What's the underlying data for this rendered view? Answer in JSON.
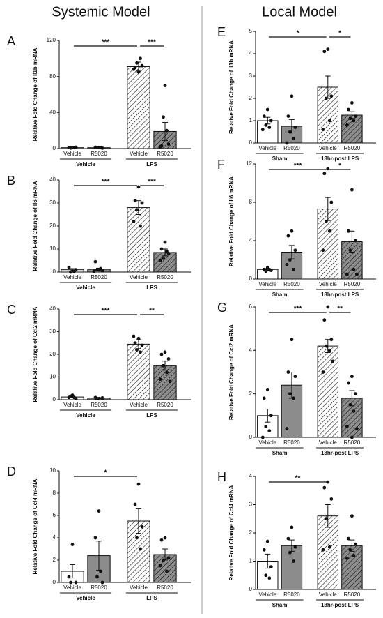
{
  "headers": [
    "Systemic Model",
    "Local Model"
  ],
  "bar_colors": [
    "#ffffff",
    "#8c8c8c",
    "#ffffff",
    "#8c8c8c"
  ],
  "hatched": [
    false,
    false,
    true,
    true
  ],
  "chart_data": [
    {
      "type": "bar",
      "panel": "A",
      "ylabel": "Relative Fold Change of Il1b mRNA",
      "categories": [
        "Vehicle",
        "R5020",
        "Vehicle",
        "R5020"
      ],
      "groups": [
        "Vehicle",
        "LPS"
      ],
      "values": [
        1,
        1,
        91,
        19
      ],
      "errors": [
        0.3,
        0.3,
        5,
        10
      ],
      "points": [
        [
          1,
          1,
          1.5,
          0.5,
          1
        ],
        [
          1,
          1.5,
          0.5,
          1,
          1
        ],
        [
          85,
          90,
          92,
          95,
          100,
          88
        ],
        [
          70,
          3,
          5,
          35,
          20,
          2
        ]
      ],
      "ylim": [
        0,
        120
      ],
      "yticks": [
        0,
        40,
        80,
        120
      ],
      "brackets": [
        {
          "between": [
            0,
            2
          ],
          "label": "***"
        },
        {
          "between": [
            2,
            3
          ],
          "label": "***"
        }
      ]
    },
    {
      "type": "bar",
      "panel": "B",
      "ylabel": "Relative Fold Change of Il6 mRNA",
      "categories": [
        "Vehicle",
        "R5020",
        "Vehicle",
        "R5020"
      ],
      "groups": [
        "Vehicle",
        "LPS"
      ],
      "values": [
        1,
        1.2,
        28,
        8.5
      ],
      "errors": [
        0.5,
        0.5,
        3,
        1.5
      ],
      "points": [
        [
          0.5,
          2,
          1,
          0,
          0.3
        ],
        [
          1,
          4.5,
          0.5,
          1,
          1.5,
          0.3
        ],
        [
          37,
          31,
          30,
          27,
          20,
          22
        ],
        [
          13,
          10,
          8,
          6,
          9,
          5
        ]
      ],
      "ylim": [
        0,
        40
      ],
      "yticks": [
        0,
        10,
        20,
        30,
        40
      ],
      "brackets": [
        {
          "between": [
            0,
            2
          ],
          "label": "***"
        },
        {
          "between": [
            2,
            3
          ],
          "label": "***"
        }
      ]
    },
    {
      "type": "bar",
      "panel": "C",
      "ylabel": "Relative Fold Change of Ccl2 mRNA",
      "categories": [
        "Vehicle",
        "R5020",
        "Vehicle",
        "R5020"
      ],
      "groups": [
        "Vehicle",
        "LPS"
      ],
      "values": [
        1.2,
        0.7,
        24.5,
        15
      ],
      "errors": [
        0.4,
        0.2,
        2,
        2
      ],
      "points": [
        [
          2,
          1,
          0.5,
          1.5,
          1
        ],
        [
          0.5,
          1,
          0.8,
          0.5
        ],
        [
          27,
          25,
          24,
          22,
          21,
          28
        ],
        [
          21,
          20,
          18,
          15,
          12,
          9,
          8
        ]
      ],
      "ylim": [
        0,
        40
      ],
      "yticks": [
        0,
        10,
        20,
        30,
        40
      ],
      "brackets": [
        {
          "between": [
            0,
            2
          ],
          "label": "***"
        },
        {
          "between": [
            2,
            3
          ],
          "label": "**"
        }
      ]
    },
    {
      "type": "bar",
      "panel": "D",
      "ylabel": "Relative Fold Change of Ccl4 mRNA",
      "categories": [
        "Vehicle",
        "R5020",
        "Vehicle",
        "R5020"
      ],
      "groups": [
        "Vehicle",
        "LPS"
      ],
      "values": [
        1,
        2.4,
        5.5,
        2.5
      ],
      "errors": [
        0.6,
        1.3,
        1.1,
        0.5
      ],
      "points": [
        [
          3.4,
          0.5,
          0,
          0
        ],
        [
          6.4,
          4,
          0,
          0.5,
          1
        ],
        [
          8.8,
          7,
          5,
          4,
          3
        ],
        [
          4,
          3.8,
          2.2,
          2,
          1,
          1.5
        ]
      ],
      "ylim": [
        0,
        10
      ],
      "yticks": [
        0,
        2,
        4,
        6,
        8,
        10
      ],
      "brackets": [
        {
          "between": [
            0,
            2
          ],
          "label": "*"
        }
      ]
    },
    {
      "type": "bar",
      "panel": "E",
      "ylabel": "Relative Fold Change of Il1b mRNA",
      "categories": [
        "Vehicle",
        "R5020",
        "Vehicle",
        "R5020"
      ],
      "groups": [
        "Sham",
        "18hr-post LPS"
      ],
      "values": [
        1,
        0.75,
        2.5,
        1.25
      ],
      "errors": [
        0.15,
        0.3,
        0.5,
        0.15
      ],
      "points": [
        [
          1.5,
          1.2,
          1,
          0.8,
          0.7,
          0.6
        ],
        [
          2.1,
          1.2,
          0.7,
          0.5,
          0.2,
          0
        ],
        [
          4.2,
          4.1,
          2.1,
          2,
          1,
          0.6
        ],
        [
          1.8,
          1.5,
          1.2,
          1.1,
          1,
          0.8
        ]
      ],
      "ylim": [
        0,
        5
      ],
      "yticks": [
        0,
        1,
        2,
        3,
        4,
        5
      ],
      "brackets": [
        {
          "between": [
            0,
            2
          ],
          "label": "*"
        },
        {
          "between": [
            2,
            3
          ],
          "label": "*"
        }
      ]
    },
    {
      "type": "bar",
      "panel": "F",
      "ylabel": "Relative Fold Change of Il6 mRNA",
      "categories": [
        "Vehicle",
        "R5020",
        "Vehicle",
        "R5020"
      ],
      "groups": [
        "Sham",
        "18hr-post LPS"
      ],
      "values": [
        1,
        2.8,
        7.3,
        3.9
      ],
      "errors": [
        0.1,
        0.7,
        1.2,
        1.1
      ],
      "points": [
        [
          1.2,
          1,
          0.9,
          0.8,
          1
        ],
        [
          5,
          4.5,
          3,
          2,
          1,
          1.5
        ],
        [
          11.5,
          11,
          8,
          6,
          5,
          3
        ],
        [
          9.3,
          5,
          4,
          3,
          1,
          0.5,
          0.5
        ]
      ],
      "ylim": [
        0,
        12
      ],
      "yticks": [
        0,
        4,
        8,
        12
      ],
      "brackets": [
        {
          "between": [
            0,
            2
          ],
          "label": "***"
        },
        {
          "between": [
            2,
            3
          ],
          "label": "*"
        }
      ]
    },
    {
      "type": "bar",
      "panel": "G",
      "ylabel": "Relative Fold Change of Ccl2 mRNA",
      "categories": [
        "Vehicle",
        "R5020",
        "Vehicle",
        "R5020"
      ],
      "groups": [
        "Sham",
        "18hr-post LPS"
      ],
      "values": [
        1,
        2.4,
        4.2,
        1.8
      ],
      "errors": [
        0.3,
        0.6,
        0.3,
        0.35
      ],
      "points": [
        [
          2.2,
          1.8,
          1,
          0.5,
          0.3,
          0
        ],
        [
          4.5,
          3,
          2.8,
          2,
          1.8,
          0.4
        ],
        [
          6,
          5.4,
          4.5,
          4.2,
          4,
          3,
          3.5
        ],
        [
          2.8,
          2.5,
          2,
          1.5,
          1.2,
          0.5,
          0.4,
          0
        ]
      ],
      "ylim": [
        0,
        6
      ],
      "yticks": [
        0,
        2,
        4,
        6
      ],
      "brackets": [
        {
          "between": [
            0,
            2
          ],
          "label": "***"
        },
        {
          "between": [
            2,
            3
          ],
          "label": "**"
        }
      ]
    },
    {
      "type": "bar",
      "panel": "H",
      "ylabel": "Relative Fold Change of Ccl4 mRNA",
      "categories": [
        "Vehicle",
        "R5020",
        "Vehicle",
        "R5020"
      ],
      "groups": [
        "Sham",
        "18hr-post LPS"
      ],
      "values": [
        1,
        1.55,
        2.6,
        1.55
      ],
      "errors": [
        0.25,
        0.2,
        0.4,
        0.2
      ],
      "points": [
        [
          1.7,
          1.4,
          0.8,
          0.5,
          0.4
        ],
        [
          2.2,
          1.8,
          1.5,
          1.3,
          1
        ],
        [
          3.8,
          3.6,
          3.2,
          2.5,
          1.5,
          1.4
        ],
        [
          2.6,
          1.8,
          1.6,
          1.4,
          1.2,
          1.1
        ]
      ],
      "ylim": [
        0,
        4
      ],
      "yticks": [
        0,
        1,
        2,
        3,
        4
      ],
      "brackets": [
        {
          "between": [
            0,
            2
          ],
          "label": "**"
        }
      ]
    }
  ]
}
